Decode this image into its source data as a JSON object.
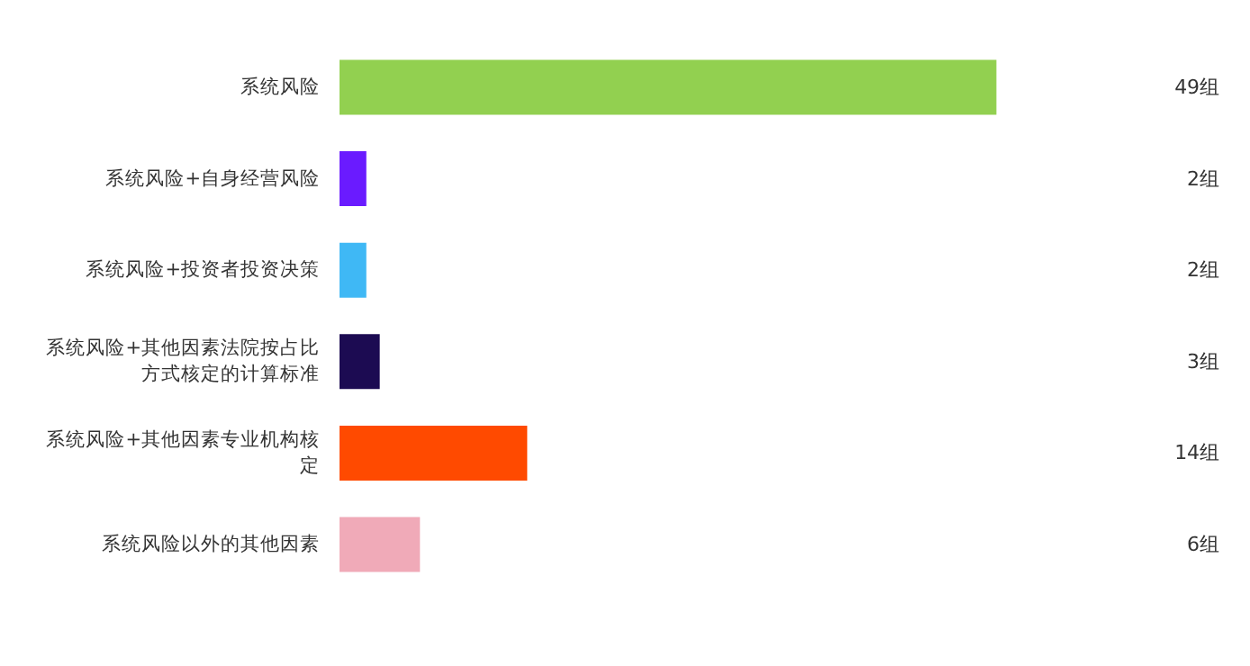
{
  "chart_data": {
    "type": "bar",
    "orientation": "horizontal",
    "categories": [
      "系统风险",
      "系统风险+自身经营风险",
      "系统风险+投资者投资决策",
      "系统风险+其他因素法院按占比方式核定的计算标准",
      "系统风险+其他因素专业机构核定",
      "系统风险以外的其他因素"
    ],
    "values": [
      49,
      2,
      2,
      3,
      14,
      6
    ],
    "colors": [
      "#92d050",
      "#6a1bff",
      "#3fb8f5",
      "#1c0b52",
      "#ff4a00",
      "#f0aab8"
    ],
    "value_labels": [
      "49组",
      "2组",
      "2组",
      "3组",
      "14组",
      "6组"
    ],
    "grid": false
  }
}
